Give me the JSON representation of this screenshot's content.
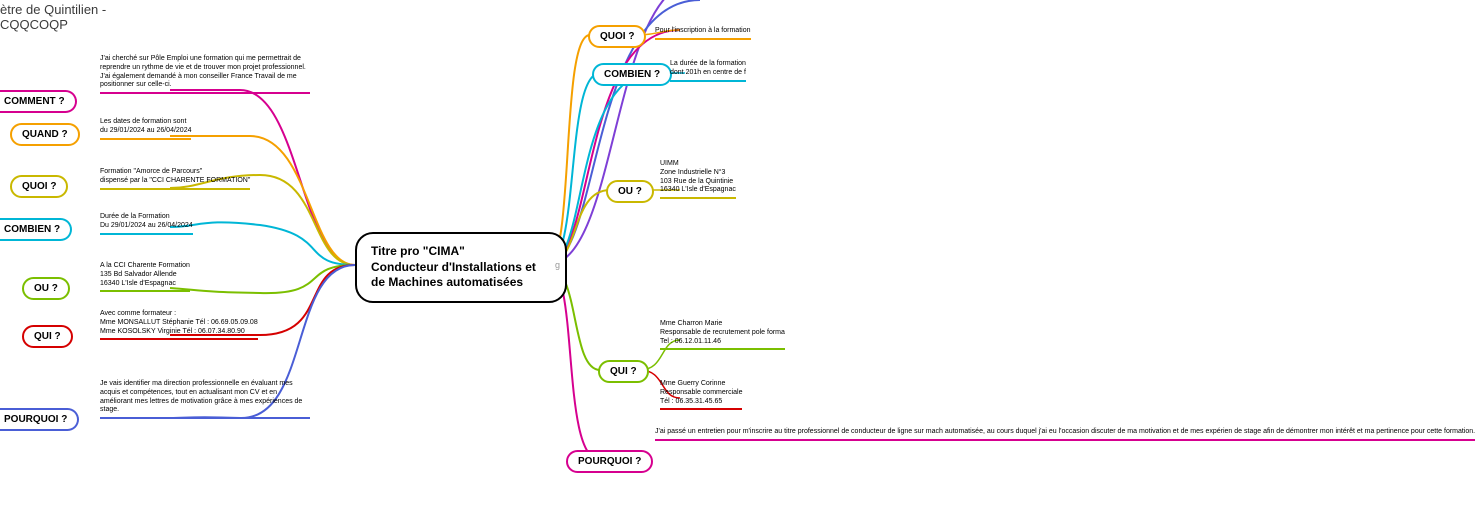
{
  "title_top": {
    "line1": "ètre de Quintilien -",
    "line2": "CQQCOQP"
  },
  "central": {
    "line1": "Titre pro \"CIMA\"",
    "line2": "Conducteur d'Installations et",
    "line3": "de Machines automatisées"
  },
  "sidebadge": "g",
  "colors": {
    "magenta": "#d6008f",
    "red": "#d50000",
    "orange": "#f5a000",
    "yellow": "#c9b800",
    "green": "#7bbf00",
    "cyan": "#00b6d6",
    "blue": "#4a5ed6",
    "purple": "#7e3fd6",
    "black": "#000000"
  },
  "left": {
    "comment": {
      "label": "COMMENT ?",
      "text": "J'ai cherché sur Pôle Emploi une formation qui me permettrait de reprendre un rythme de vie et de trouver mon projet professionnel.\nJ'ai également demandé à mon conseiller France Travail de me positionner sur celle-ci."
    },
    "quand": {
      "label": "QUAND ?",
      "text": "Les dates de formation sont\ndu 29/01/2024 au 26/04/2024"
    },
    "quoi": {
      "label": "QUOI ?",
      "text": "Formation \"Amorce de Parcours\"\ndispensé par la \"CCI CHARENTE FORMATION\""
    },
    "combien": {
      "label": "COMBIEN ?",
      "text": "Durée de la Formation\nDu 29/01/2024 au 26/04/2024"
    },
    "ou": {
      "label": "OU ?",
      "text": "A la CCI Charente Formation\n135 Bd Salvador Allende\n16340 L'Isle d'Espagnac"
    },
    "qui": {
      "label": "QUI ?",
      "text": "Avec comme formateur :\nMme MONSALLUT Stéphanie Tél : 06.69.05.09.08\nMme KOSOLSKY Virginie Tél : 06.07.34.80.90"
    },
    "pourquoi": {
      "label": "POURQUOI ?",
      "text": "Je vais identifier ma direction professionnelle en évaluant mes acquis et compétences, tout en actualisant mon CV et en améliorant mes lettres de motivation grâce à mes expériences de stage."
    }
  },
  "right": {
    "quoi": {
      "label": "QUOI ?",
      "text": "Pour l'inscription à la formation"
    },
    "combien": {
      "label": "COMBIEN ?",
      "text": "La durée de la formation\ndont 201h en centre de f"
    },
    "ou": {
      "label": "OU ?",
      "text": "UIMM\nZone Industrielle N°3\n103 Rue de la Quintinie\n16340 L'Isle d'Espagnac"
    },
    "qui": {
      "label": "QUI ?",
      "text1": "Mme Charron Marie\nResponsable de recrutement pole forma\nTel : 06.12.01.11.46",
      "text2": "Mme Guerry Corinne\nResponsable commerciale\nTél : 06.35.31.45.65"
    },
    "pourquoi": {
      "label": "POURQUOI ?",
      "text": "J'ai passé un entretien pour m'inscrire au titre professionnel de conducteur de ligne sur mach automatisée, au cours duquel j'ai eu l'occasion discuter de ma motivation et de mes expérien de stage afin de démontrer mon intérêt et ma pertinence pour cette formation."
    }
  }
}
